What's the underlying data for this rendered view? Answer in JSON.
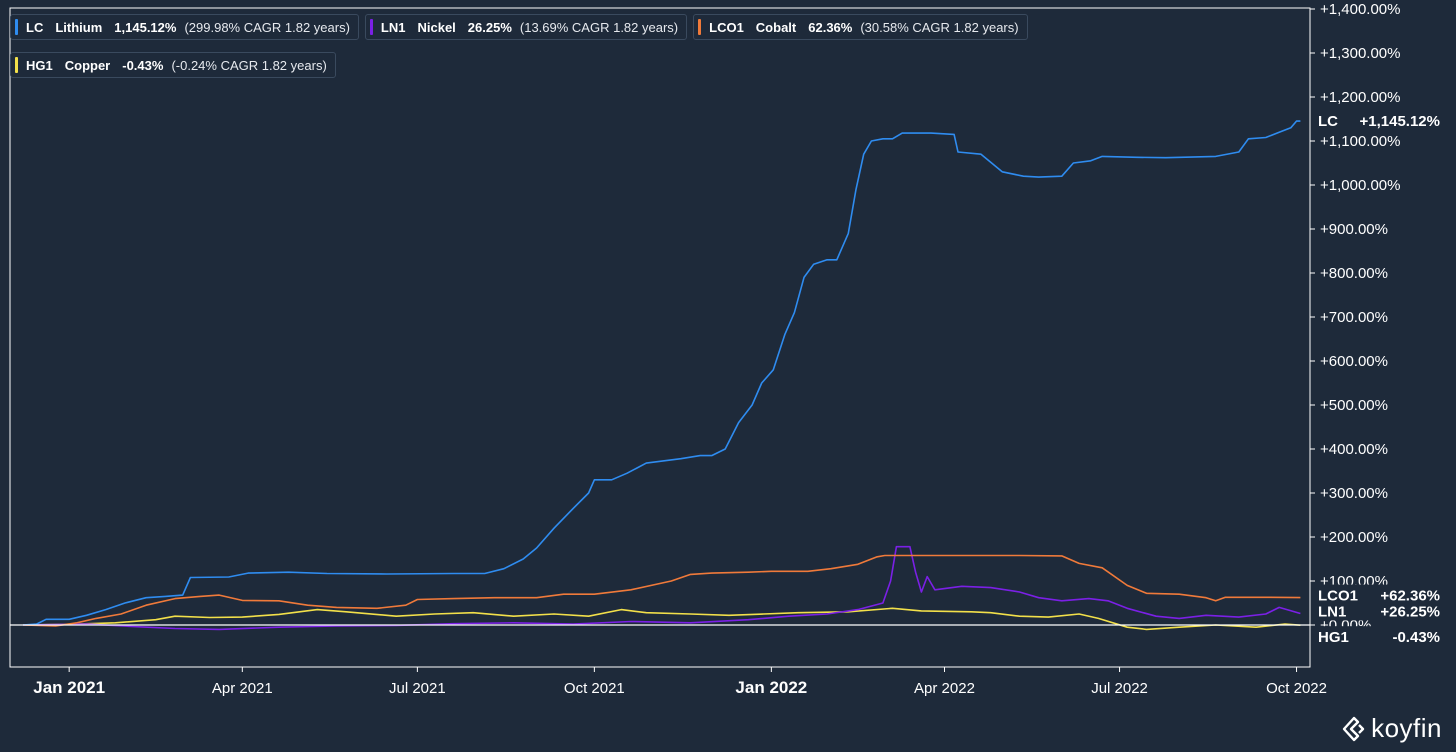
{
  "colors": {
    "background": "#1e2a3a",
    "axis": "#ffffff",
    "text": "#ffffff"
  },
  "legend": [
    {
      "ticker": "LC",
      "name": "Lithium",
      "return": "1,145.12%",
      "cagr": "(299.98% CAGR 1.82 years)",
      "color": "#2f8cf0"
    },
    {
      "ticker": "LN1",
      "name": "Nickel",
      "return": "26.25%",
      "cagr": "(13.69% CAGR 1.82 years)",
      "color": "#7b20e6"
    },
    {
      "ticker": "LCO1",
      "name": "Cobalt",
      "return": "62.36%",
      "cagr": "(30.58% CAGR 1.82 years)",
      "color": "#f07a3a"
    },
    {
      "ticker": "HG1",
      "name": "Copper",
      "return": "-0.43%",
      "cagr": "(-0.24% CAGR 1.82 years)",
      "color": "#f2e04a"
    }
  ],
  "brand": "koyfin",
  "chart_data": {
    "type": "line",
    "ylabel": "",
    "xlabel": "",
    "ylim": [
      -95,
      1400
    ],
    "y_ticks": [
      0,
      100,
      200,
      300,
      400,
      500,
      600,
      700,
      800,
      900,
      1000,
      1100,
      1200,
      1300,
      1400
    ],
    "y_tick_labels": [
      "+0.00%",
      "+100.00%",
      "+200.00%",
      "+300.00%",
      "+400.00%",
      "+500.00%",
      "+600.00%",
      "+700.00%",
      "+800.00%",
      "+900.00%",
      "+1,000.00%",
      "+1,100.00%",
      "+1,200.00%",
      "+1,300.00%",
      "+1,400.00%"
    ],
    "xlim": [
      "2020-12-08",
      "2022-10-08"
    ],
    "x_ticks": [
      {
        "date": "2021-01-01",
        "label": "Jan 2021",
        "bold": true
      },
      {
        "date": "2021-04-01",
        "label": "Apr 2021",
        "bold": false
      },
      {
        "date": "2021-07-01",
        "label": "Jul 2021",
        "bold": false
      },
      {
        "date": "2021-10-01",
        "label": "Oct 2021",
        "bold": false
      },
      {
        "date": "2022-01-01",
        "label": "Jan 2022",
        "bold": true
      },
      {
        "date": "2022-04-01",
        "label": "Apr 2022",
        "bold": false
      },
      {
        "date": "2022-07-01",
        "label": "Jul 2022",
        "bold": false
      },
      {
        "date": "2022-10-01",
        "label": "Oct 2022",
        "bold": false
      }
    ],
    "end_labels": [
      {
        "ticker": "LC",
        "value": "+1,145.12%"
      },
      {
        "ticker": "LCO1",
        "value": "+62.36%"
      },
      {
        "ticker": "LN1",
        "value": "+26.25%"
      },
      {
        "ticker": "HG1",
        "value": "-0.43%"
      }
    ],
    "series": [
      {
        "ticker": "LC",
        "color": "#2f8cf0",
        "points": [
          [
            "2020-12-08",
            0
          ],
          [
            "2020-12-15",
            2
          ],
          [
            "2020-12-20",
            13
          ],
          [
            "2021-01-01",
            13
          ],
          [
            "2021-01-10",
            22
          ],
          [
            "2021-01-20",
            35
          ],
          [
            "2021-01-30",
            50
          ],
          [
            "2021-02-10",
            62
          ],
          [
            "2021-02-20",
            65
          ],
          [
            "2021-03-01",
            68
          ],
          [
            "2021-03-05",
            108
          ],
          [
            "2021-03-25",
            109
          ],
          [
            "2021-04-04",
            118
          ],
          [
            "2021-04-25",
            120
          ],
          [
            "2021-05-15",
            117
          ],
          [
            "2021-06-15",
            116
          ],
          [
            "2021-07-20",
            117
          ],
          [
            "2021-08-05",
            117
          ],
          [
            "2021-08-15",
            128
          ],
          [
            "2021-08-25",
            150
          ],
          [
            "2021-09-01",
            175
          ],
          [
            "2021-09-10",
            220
          ],
          [
            "2021-09-20",
            265
          ],
          [
            "2021-09-28",
            300
          ],
          [
            "2021-10-01",
            330
          ],
          [
            "2021-10-10",
            330
          ],
          [
            "2021-10-18",
            345
          ],
          [
            "2021-10-28",
            368
          ],
          [
            "2021-11-15",
            378
          ],
          [
            "2021-11-25",
            385
          ],
          [
            "2021-12-01",
            385
          ],
          [
            "2021-12-08",
            400
          ],
          [
            "2021-12-15",
            460
          ],
          [
            "2021-12-22",
            500
          ],
          [
            "2021-12-27",
            550
          ],
          [
            "2022-01-02",
            580
          ],
          [
            "2022-01-08",
            660
          ],
          [
            "2022-01-13",
            710
          ],
          [
            "2022-01-18",
            790
          ],
          [
            "2022-01-23",
            820
          ],
          [
            "2022-01-30",
            830
          ],
          [
            "2022-02-04",
            830
          ],
          [
            "2022-02-10",
            890
          ],
          [
            "2022-02-14",
            990
          ],
          [
            "2022-02-18",
            1070
          ],
          [
            "2022-02-22",
            1100
          ],
          [
            "2022-02-28",
            1105
          ],
          [
            "2022-03-05",
            1105
          ],
          [
            "2022-03-10",
            1118
          ],
          [
            "2022-03-25",
            1118
          ],
          [
            "2022-04-06",
            1115
          ],
          [
            "2022-04-08",
            1075
          ],
          [
            "2022-04-20",
            1070
          ],
          [
            "2022-05-01",
            1030
          ],
          [
            "2022-05-12",
            1020
          ],
          [
            "2022-05-20",
            1018
          ],
          [
            "2022-06-01",
            1020
          ],
          [
            "2022-06-07",
            1050
          ],
          [
            "2022-06-16",
            1055
          ],
          [
            "2022-06-22",
            1065
          ],
          [
            "2022-07-10",
            1063
          ],
          [
            "2022-07-25",
            1062
          ],
          [
            "2022-08-20",
            1065
          ],
          [
            "2022-09-01",
            1075
          ],
          [
            "2022-09-06",
            1105
          ],
          [
            "2022-09-15",
            1108
          ],
          [
            "2022-09-22",
            1120
          ],
          [
            "2022-09-28",
            1130
          ],
          [
            "2022-10-01",
            1145.12
          ],
          [
            "2022-10-03",
            1145.12
          ]
        ]
      },
      {
        "ticker": "LCO1",
        "color": "#f07a3a",
        "points": [
          [
            "2020-12-08",
            0
          ],
          [
            "2020-12-25",
            -2
          ],
          [
            "2021-01-05",
            5
          ],
          [
            "2021-01-15",
            15
          ],
          [
            "2021-01-28",
            25
          ],
          [
            "2021-02-10",
            45
          ],
          [
            "2021-02-25",
            60
          ],
          [
            "2021-03-10",
            65
          ],
          [
            "2021-03-20",
            68
          ],
          [
            "2021-04-01",
            56
          ],
          [
            "2021-04-20",
            55
          ],
          [
            "2021-05-05",
            45
          ],
          [
            "2021-05-20",
            40
          ],
          [
            "2021-06-10",
            38
          ],
          [
            "2021-06-25",
            45
          ],
          [
            "2021-07-01",
            58
          ],
          [
            "2021-07-20",
            60
          ],
          [
            "2021-08-10",
            62
          ],
          [
            "2021-09-01",
            62
          ],
          [
            "2021-09-15",
            70
          ],
          [
            "2021-10-01",
            70
          ],
          [
            "2021-10-20",
            80
          ],
          [
            "2021-11-10",
            100
          ],
          [
            "2021-11-20",
            115
          ],
          [
            "2021-12-01",
            118
          ],
          [
            "2021-12-20",
            120
          ],
          [
            "2022-01-01",
            122
          ],
          [
            "2022-01-20",
            122
          ],
          [
            "2022-02-01",
            128
          ],
          [
            "2022-02-15",
            138
          ],
          [
            "2022-02-25",
            155
          ],
          [
            "2022-03-01",
            158
          ],
          [
            "2022-03-20",
            158
          ],
          [
            "2022-04-15",
            158
          ],
          [
            "2022-05-10",
            158
          ],
          [
            "2022-06-01",
            157
          ],
          [
            "2022-06-10",
            140
          ],
          [
            "2022-06-22",
            130
          ],
          [
            "2022-07-05",
            90
          ],
          [
            "2022-07-15",
            72
          ],
          [
            "2022-08-01",
            70
          ],
          [
            "2022-08-15",
            62
          ],
          [
            "2022-08-20",
            55
          ],
          [
            "2022-08-25",
            63
          ],
          [
            "2022-09-15",
            63
          ],
          [
            "2022-10-03",
            62.36
          ]
        ]
      },
      {
        "ticker": "LN1",
        "color": "#7b20e6",
        "points": [
          [
            "2020-12-08",
            0
          ],
          [
            "2021-01-10",
            2
          ],
          [
            "2021-02-01",
            -3
          ],
          [
            "2021-02-25",
            -8
          ],
          [
            "2021-03-20",
            -10
          ],
          [
            "2021-04-20",
            -5
          ],
          [
            "2021-05-20",
            -2
          ],
          [
            "2021-06-20",
            -1
          ],
          [
            "2021-07-20",
            3
          ],
          [
            "2021-08-20",
            5
          ],
          [
            "2021-09-20",
            2
          ],
          [
            "2021-10-20",
            8
          ],
          [
            "2021-11-20",
            5
          ],
          [
            "2021-12-20",
            12
          ],
          [
            "2022-01-10",
            20
          ],
          [
            "2022-01-30",
            25
          ],
          [
            "2022-02-15",
            35
          ],
          [
            "2022-02-28",
            50
          ],
          [
            "2022-03-04",
            100
          ],
          [
            "2022-03-07",
            178
          ],
          [
            "2022-03-14",
            178
          ],
          [
            "2022-03-17",
            120
          ],
          [
            "2022-03-20",
            75
          ],
          [
            "2022-03-23",
            110
          ],
          [
            "2022-03-27",
            80
          ],
          [
            "2022-04-10",
            88
          ],
          [
            "2022-04-25",
            85
          ],
          [
            "2022-05-10",
            75
          ],
          [
            "2022-05-20",
            62
          ],
          [
            "2022-06-01",
            55
          ],
          [
            "2022-06-15",
            60
          ],
          [
            "2022-06-25",
            55
          ],
          [
            "2022-07-05",
            38
          ],
          [
            "2022-07-20",
            20
          ],
          [
            "2022-08-01",
            15
          ],
          [
            "2022-08-15",
            22
          ],
          [
            "2022-09-01",
            18
          ],
          [
            "2022-09-15",
            25
          ],
          [
            "2022-09-22",
            40
          ],
          [
            "2022-10-03",
            26.25
          ]
        ]
      },
      {
        "ticker": "HG1",
        "color": "#f2e04a",
        "points": [
          [
            "2020-12-08",
            0
          ],
          [
            "2021-01-05",
            2
          ],
          [
            "2021-01-25",
            5
          ],
          [
            "2021-02-15",
            12
          ],
          [
            "2021-02-25",
            20
          ],
          [
            "2021-03-15",
            17
          ],
          [
            "2021-04-01",
            18
          ],
          [
            "2021-04-20",
            24
          ],
          [
            "2021-05-10",
            35
          ],
          [
            "2021-05-25",
            30
          ],
          [
            "2021-06-20",
            20
          ],
          [
            "2021-07-10",
            25
          ],
          [
            "2021-07-30",
            28
          ],
          [
            "2021-08-20",
            20
          ],
          [
            "2021-09-10",
            25
          ],
          [
            "2021-09-28",
            20
          ],
          [
            "2021-10-15",
            35
          ],
          [
            "2021-10-28",
            28
          ],
          [
            "2021-11-20",
            25
          ],
          [
            "2021-12-10",
            22
          ],
          [
            "2021-12-28",
            25
          ],
          [
            "2022-01-15",
            28
          ],
          [
            "2022-02-10",
            30
          ],
          [
            "2022-03-05",
            38
          ],
          [
            "2022-03-20",
            32
          ],
          [
            "2022-04-15",
            30
          ],
          [
            "2022-04-25",
            28
          ],
          [
            "2022-05-10",
            20
          ],
          [
            "2022-05-25",
            18
          ],
          [
            "2022-06-10",
            25
          ],
          [
            "2022-06-20",
            15
          ],
          [
            "2022-07-05",
            -5
          ],
          [
            "2022-07-15",
            -10
          ],
          [
            "2022-08-01",
            -5
          ],
          [
            "2022-08-20",
            0
          ],
          [
            "2022-09-10",
            -5
          ],
          [
            "2022-09-25",
            2
          ],
          [
            "2022-10-03",
            -0.43
          ]
        ]
      }
    ]
  }
}
